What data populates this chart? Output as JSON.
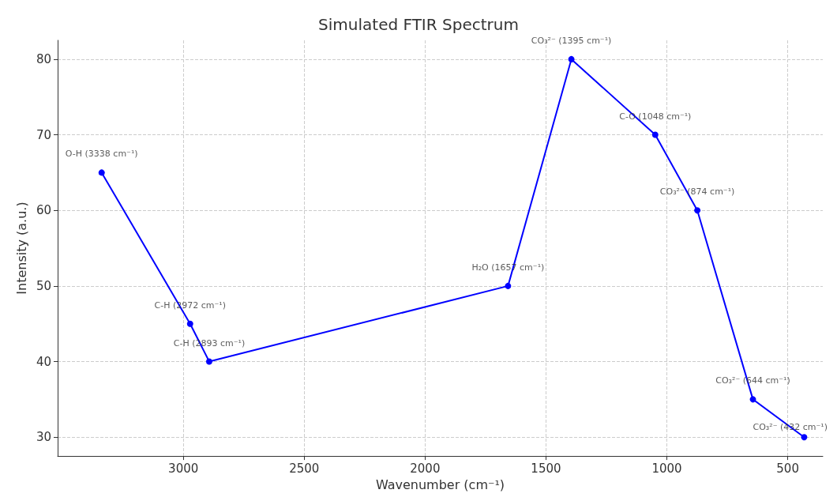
{
  "chart_data": {
    "type": "line",
    "title": "Simulated FTIR Spectrum",
    "xlabel": "Wavenumber (cm⁻¹)",
    "ylabel": "Intensity (a.u.)",
    "x": [
      3338,
      2972,
      2893,
      1657,
      1395,
      1048,
      874,
      644,
      432
    ],
    "series": [
      {
        "color": "#0000ff",
        "values": [
          65,
          45,
          40,
          50,
          80,
          70,
          60,
          35,
          30
        ]
      }
    ],
    "xlim": [
      3520,
      355
    ],
    "xticks": [
      3000,
      2500,
      2000,
      1500,
      1000,
      500
    ],
    "ylim": [
      27.5,
      82.5
    ],
    "yticks": [
      30,
      40,
      50,
      60,
      70,
      80
    ],
    "grid": true,
    "marker": "circle",
    "line_style": "solid",
    "annotations": [
      {
        "text": "O-H (3338 cm⁻¹)",
        "x": 3338,
        "y": 65
      },
      {
        "text": "C-H (2972 cm⁻¹)",
        "x": 2972,
        "y": 45
      },
      {
        "text": "C-H (2893 cm⁻¹)",
        "x": 2893,
        "y": 40
      },
      {
        "text": "H₂O (1657 cm⁻¹)",
        "x": 1657,
        "y": 50
      },
      {
        "text": "CO₃²⁻ (1395 cm⁻¹)",
        "x": 1395,
        "y": 80
      },
      {
        "text": "C-O (1048 cm⁻¹)",
        "x": 1048,
        "y": 70
      },
      {
        "text": "CO₃²⁻ (874 cm⁻¹)",
        "x": 874,
        "y": 60
      },
      {
        "text": "CO₃²⁻ (644 cm⁻¹)",
        "x": 644,
        "y": 35
      },
      {
        "text": "CO₃²⁻ (432 cm⁻¹)",
        "x": 432,
        "y": 30
      }
    ]
  }
}
